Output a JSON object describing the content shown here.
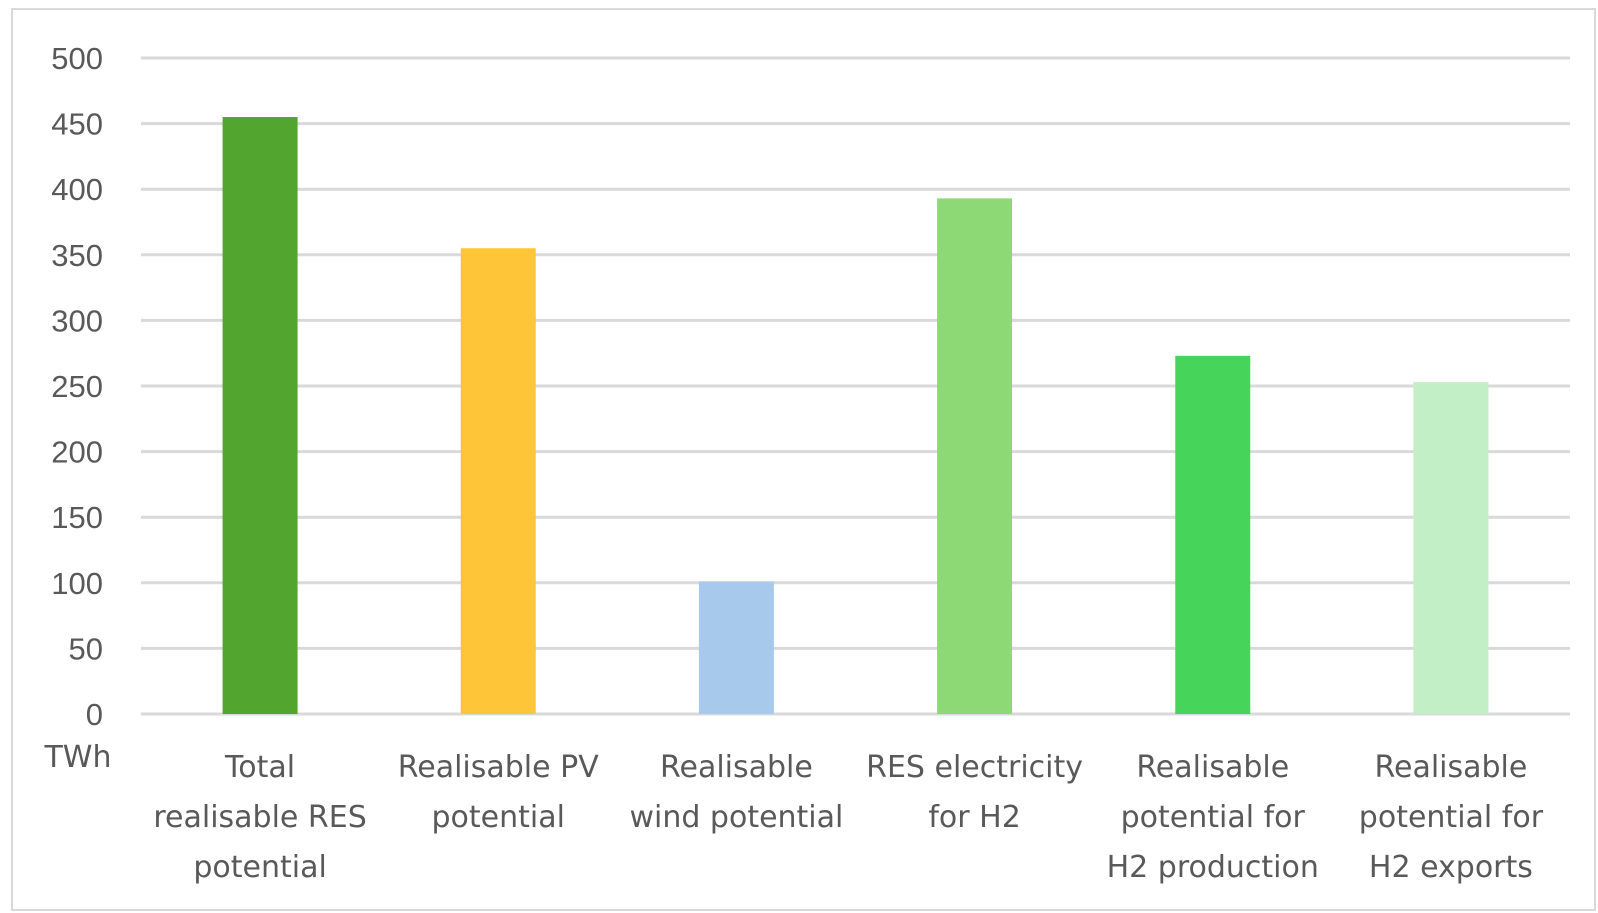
{
  "chart_data": {
    "type": "bar",
    "categories": [
      [
        "Total",
        "realisable RES",
        "potential"
      ],
      [
        "Realisable PV",
        "potential"
      ],
      [
        "Realisable",
        "wind potential"
      ],
      [
        "RES electricity",
        "for H2"
      ],
      [
        "Realisable",
        "potential for",
        "H2 production"
      ],
      [
        "Realisable",
        "potential for",
        "H2 exports"
      ]
    ],
    "values": [
      455,
      355,
      101,
      393,
      273,
      253
    ],
    "colors": [
      "#52a52f",
      "#fdc537",
      "#a6c9ec",
      "#8dd975",
      "#46d45a",
      "#c2efc5"
    ],
    "title": "",
    "xlabel": "",
    "ylabel": "TWh",
    "ylim": [
      0,
      500
    ],
    "yticks": [
      0,
      50,
      100,
      150,
      200,
      250,
      300,
      350,
      400,
      450,
      500
    ],
    "grid": true,
    "legend": "none"
  }
}
